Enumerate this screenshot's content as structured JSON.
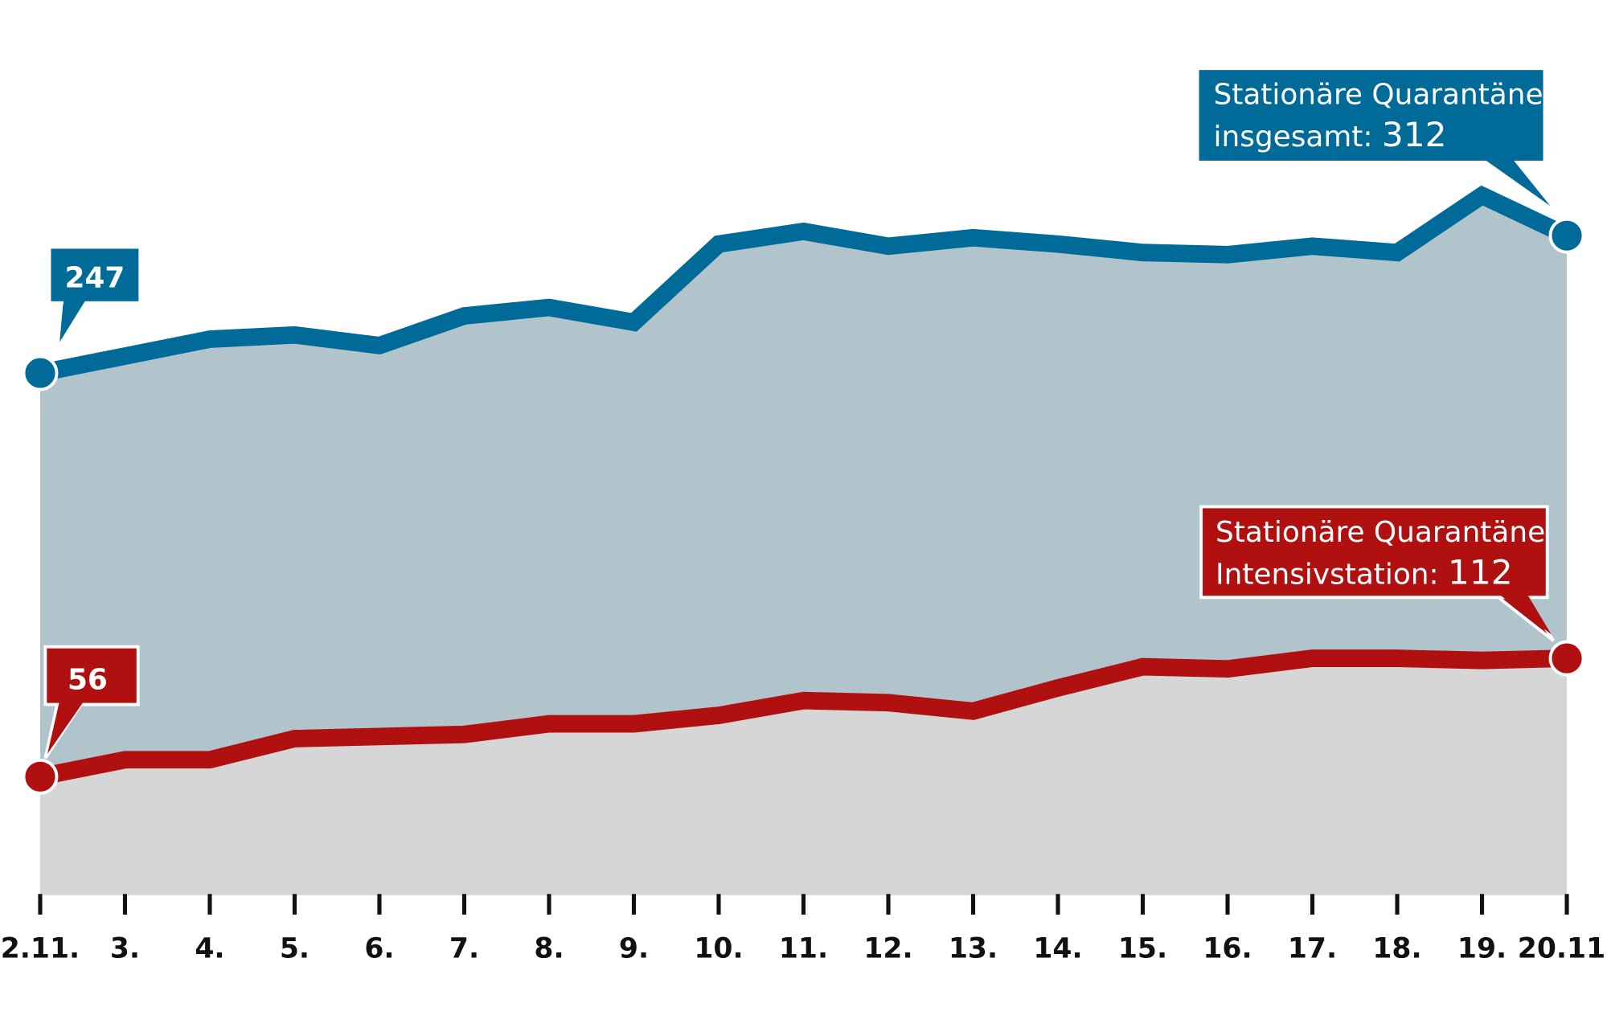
{
  "chart_data": {
    "type": "area",
    "title": "",
    "xlabel": "",
    "ylabel": "",
    "ylim": [
      0,
      340
    ],
    "grid": false,
    "categories": [
      "2.11.",
      "3.",
      "4.",
      "5.",
      "6.",
      "7.",
      "8.",
      "9.",
      "10.",
      "11.",
      "12.",
      "13.",
      "14.",
      "15.",
      "16.",
      "17.",
      "18.",
      "19.",
      "20.11."
    ],
    "series": [
      {
        "name": "Stationäre Quarantäne insgesamt",
        "color": "#006a99",
        "fill": "#b1c4cc",
        "values": [
          247,
          255,
          263,
          265,
          260,
          274,
          278,
          271,
          308,
          314,
          307,
          311,
          308,
          304,
          303,
          307,
          304,
          331,
          312
        ],
        "start_label": "247",
        "end_label_line1": "Stationäre Quarantäne",
        "end_label_line2": "insgesamt: ",
        "end_label_value": "312"
      },
      {
        "name": "Stationäre Quarantäne Intensivstation",
        "color": "#b01010",
        "fill": "#d6d6d6",
        "values": [
          56,
          64,
          64,
          74,
          75,
          76,
          81,
          81,
          85,
          92,
          91,
          87,
          98,
          108,
          107,
          112,
          112,
          111,
          112
        ],
        "start_label": "56",
        "end_label_line1": "Stationäre Quarantäne",
        "end_label_line2": "Intensivstation: ",
        "end_label_value": "112"
      }
    ]
  }
}
